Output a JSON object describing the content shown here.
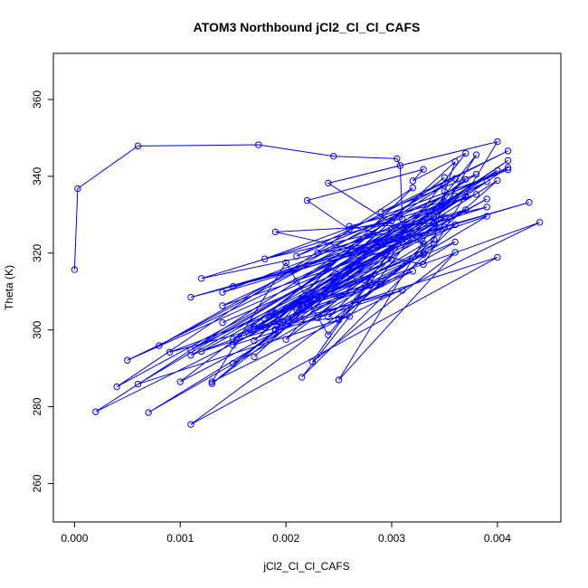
{
  "chart_data": {
    "type": "line",
    "title": "ATOM3 Northbound jCl2_Cl_Cl_CAFS",
    "xlabel": "jCl2_Cl_Cl_CAFS",
    "ylabel": "Theta (K)",
    "xlim": [
      -0.0002,
      0.0046
    ],
    "ylim": [
      250,
      372
    ],
    "x_ticks": [
      0.0,
      0.001,
      0.002,
      0.003,
      0.004
    ],
    "x_tick_labels": [
      "0.000",
      "0.001",
      "0.002",
      "0.003",
      "0.004"
    ],
    "y_ticks": [
      260,
      280,
      300,
      320,
      340,
      360
    ],
    "y_tick_labels": [
      "260",
      "280",
      "300",
      "320",
      "340",
      "360"
    ],
    "grid": false,
    "legend": "none",
    "series_color": "#0000ff",
    "series": [
      {
        "x": [
          0.0,
          3e-05,
          0.0006,
          0.00174,
          0.00245,
          0.00305,
          0.00308,
          0.0031,
          0.0026,
          0.0022,
          0.0033,
          0.0032,
          0.0037,
          0.0025,
          0.0034,
          0.0035,
          0.0035,
          0.0026,
          0.0033,
          0.0024,
          0.004,
          0.0033,
          0.0019,
          0.0034,
          0.0036,
          0.0027,
          0.0038,
          0.0029,
          0.0041,
          0.0021,
          0.0041,
          0.0018,
          0.0039,
          0.0015,
          0.0043,
          0.0014,
          0.0038,
          0.0012,
          0.0032,
          0.0011,
          0.0031,
          0.0024,
          0.002,
          0.0013,
          0.0044,
          0.0021,
          0.0041,
          0.0023,
          0.0037,
          0.0005,
          0.0037,
          0.0004,
          0.0032,
          0.0017,
          0.003,
          0.0008,
          0.0036,
          0.0002,
          0.0034,
          0.0011,
          0.004,
          0.0012,
          0.0034,
          0.0015,
          0.0035,
          0.001,
          0.0033,
          0.0007,
          0.0036,
          0.00215,
          0.0038,
          0.0025,
          0.0036,
          0.00225,
          0.003,
          0.0013,
          0.0025,
          0.0017,
          0.003,
          0.0019,
          0.0024,
          0.0028,
          0.0039,
          0.0014,
          0.0039,
          0.0011,
          0.0026,
          0.002,
          0.0035,
          0.0017,
          0.0026,
          0.0006,
          0.004,
          0.0016,
          0.0031,
          0.0015,
          0.0027,
          0.0019,
          0.0034,
          0.0011,
          0.0032,
          0.0023,
          0.0037,
          0.0018,
          0.0041,
          0.0017,
          0.0029,
          0.002,
          0.0033,
          0.0019,
          0.0036,
          0.0021,
          0.0037,
          0.0019,
          0.0029,
          0.0025,
          0.004,
          0.0015,
          0.0031,
          0.0009,
          0.0028,
          0.0024,
          0.0036,
          0.0022,
          0.003,
          0.0018,
          0.0039,
          0.0021,
          0.0035,
          0.0014
        ],
        "y": [
          315.7,
          336.8,
          347.9,
          348.2,
          345.2,
          344.6,
          342.8,
          328.9,
          326.2,
          333.7,
          341.8,
          338.8,
          346.0,
          302.8,
          323.5,
          336.0,
          333.4,
          327.0,
          322.5,
          338.2,
          349.0,
          317.0,
          325.5,
          327.8,
          343.8,
          320.9,
          340.5,
          330.7,
          346.6,
          319.2,
          341.7,
          318.5,
          332.0,
          311.3,
          333.2,
          309.8,
          335.3,
          313.4,
          324.9,
          308.5,
          322.8,
          298.7,
          317.5,
          286.5,
          328.0,
          305.3,
          342.3,
          320.1,
          331.3,
          292.1,
          334.6,
          285.2,
          337.0,
          297.2,
          328.4,
          295.9,
          339.4,
          278.7,
          322.3,
          275.4,
          318.9,
          294.4,
          327.6,
          297.6,
          339.7,
          286.5,
          319.6,
          278.5,
          327.4,
          287.7,
          345.6,
          287.0,
          320.2,
          291.7,
          321.3,
          286.0,
          313.6,
          293.0,
          326.0,
          300.2,
          316.2,
          311.6,
          329.6,
          306.3,
          338.6,
          294.8,
          315.4,
          297.5,
          329.3,
          300.8,
          303.5,
          285.9,
          341.5,
          298.5,
          323.6,
          291.3,
          316.7,
          299.9,
          329.7,
          293.4,
          315.3,
          303.2,
          339.2,
          300.7,
          344.1,
          300.2,
          312.6,
          305.6,
          320.0,
          304.0,
          334.9,
          312.7,
          334.8,
          304.4,
          312.0,
          302.6,
          338.9,
          296.0,
          310.3,
          294.2,
          313.7,
          303.4,
          322.9,
          306.6,
          318.3,
          302.9,
          334.1,
          305.9,
          326.8,
          301.9
        ]
      }
    ]
  }
}
